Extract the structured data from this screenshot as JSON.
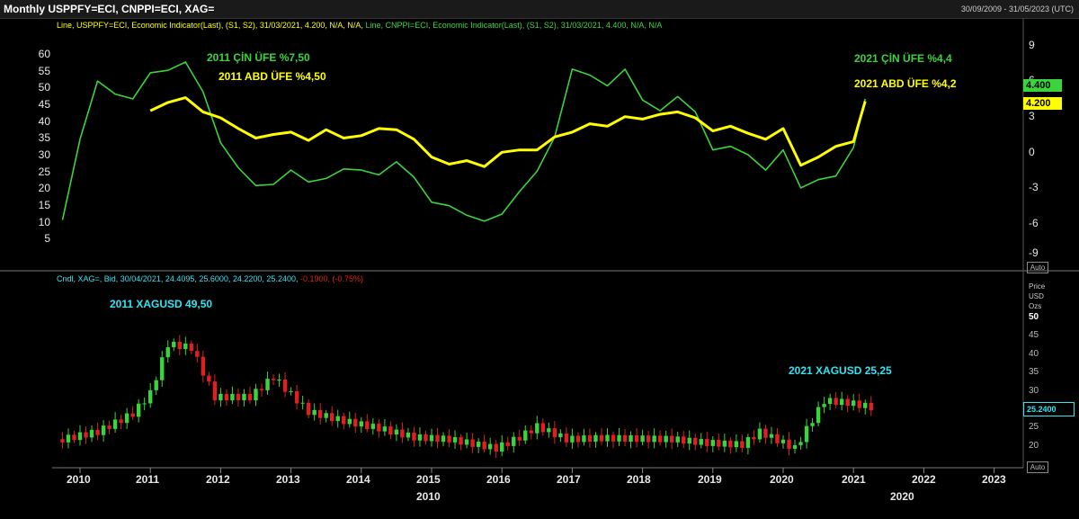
{
  "window": {
    "title": "Monthly USPPFY=ECI, CNPPI=ECI, XAG=",
    "date_range": "30/09/2009 - 31/05/2023 (UTC)"
  },
  "top_panel": {
    "legend": {
      "us_prefix": "Line, USPPFY=ECI, Economic Indicator(Last), (S1, S2), 31/03/2021, 4.200, N/A, N/A,",
      "cn_part": "Line, CNPPI=ECI, Economic Indicator(Last), (S1, S2), 31/03/2021, 4.400, N/A, N/A"
    },
    "annotations": {
      "cn_2011": "2011 ÇİN ÜFE %7,50",
      "us_2011": "2011 ABD ÜFE %4,50",
      "cn_2021": "2021 ÇİN ÜFE %4,4",
      "us_2021": "2021 ABD ÜFE %4,2"
    },
    "left_axis_ticks": [
      "60",
      "55",
      "50",
      "45",
      "40",
      "35",
      "30",
      "25",
      "20",
      "15",
      "10",
      "5"
    ],
    "right_axis_ticks": [
      "9",
      "6",
      "3",
      "0",
      "-3",
      "-6",
      "-9"
    ],
    "badges": {
      "cn": "4.400",
      "us": "4.200"
    },
    "auto_label": "Auto",
    "colors": {
      "cn": "#3cd43c",
      "us": "#ffff00"
    }
  },
  "bottom_panel": {
    "legend": {
      "main": "Cndl, XAG=, Bid, 30/04/2021, 24.4095, 25.6000, 24.2200, 25.2400,",
      "change": "-0.1900, (-0.75%)"
    },
    "annotations": {
      "xag_2011": "2011 XAGUSD 49,50",
      "xag_2021": "2021 XAGUSD 25,25"
    },
    "axis_header": {
      "line1": "Price",
      "line2": "USD",
      "line3": "Ozs"
    },
    "right_axis_ticks": [
      "50",
      "45",
      "40",
      "35",
      "30",
      "25",
      "20",
      "15"
    ],
    "last_price_badge": "25.2400",
    "auto_label": "Auto",
    "colors": {
      "up": "#3cd43c",
      "down": "#e02020",
      "accent": "#35e3f2"
    }
  },
  "x_axis": {
    "years": [
      "2010",
      "2011",
      "2012",
      "2013",
      "2014",
      "2015",
      "2016",
      "2017",
      "2018",
      "2019",
      "2020",
      "2021",
      "2022",
      "2023"
    ],
    "major": [
      "2010",
      "2020"
    ]
  },
  "chart_data": [
    {
      "type": "line",
      "title": "Monthly USPPFY=ECI, CNPPI=ECI",
      "x": [
        "2009-10",
        "2010-01",
        "2010-04",
        "2010-07",
        "2010-10",
        "2011-01",
        "2011-04",
        "2011-07",
        "2011-10",
        "2012-01",
        "2012-04",
        "2012-07",
        "2012-10",
        "2013-01",
        "2013-04",
        "2013-07",
        "2013-10",
        "2014-01",
        "2014-04",
        "2014-07",
        "2014-10",
        "2015-01",
        "2015-04",
        "2015-07",
        "2015-10",
        "2016-01",
        "2016-04",
        "2016-07",
        "2016-10",
        "2017-01",
        "2017-04",
        "2017-07",
        "2017-10",
        "2018-01",
        "2018-04",
        "2018-07",
        "2018-10",
        "2019-01",
        "2019-04",
        "2019-07",
        "2019-10",
        "2020-01",
        "2020-04",
        "2020-07",
        "2020-10",
        "2021-01",
        "2021-03"
      ],
      "series": [
        {
          "name": "CNPPI=ECI",
          "values": [
            -5.8,
            1.0,
            5.9,
            4.8,
            4.4,
            6.6,
            6.8,
            7.5,
            5.0,
            0.7,
            -1.4,
            -2.9,
            -2.8,
            -1.6,
            -2.6,
            -2.3,
            -1.5,
            -1.6,
            -2.0,
            -0.9,
            -2.2,
            -4.3,
            -4.6,
            -5.4,
            -5.9,
            -5.3,
            -3.4,
            -1.7,
            1.2,
            6.9,
            6.4,
            5.5,
            6.9,
            4.3,
            3.4,
            4.6,
            3.3,
            0.1,
            0.4,
            -0.3,
            -1.6,
            0.1,
            -3.1,
            -2.4,
            -2.1,
            0.3,
            4.4
          ]
        },
        {
          "name": "USPPFY=ECI",
          "values": [
            null,
            null,
            null,
            null,
            null,
            3.4,
            4.1,
            4.5,
            3.3,
            2.8,
            1.9,
            1.1,
            1.4,
            1.6,
            0.9,
            1.8,
            1.1,
            1.3,
            1.9,
            1.8,
            1.0,
            -0.5,
            -1.1,
            -0.8,
            -1.3,
            -0.1,
            0.1,
            0.1,
            1.2,
            1.6,
            2.3,
            2.1,
            2.9,
            2.7,
            3.1,
            3.3,
            2.8,
            1.7,
            2.1,
            1.5,
            1.0,
            1.9,
            -1.2,
            -0.5,
            0.4,
            0.8,
            4.2
          ]
        }
      ],
      "ylabel": "",
      "ylim": [
        -10,
        10
      ],
      "left_axis_range": [
        0,
        62
      ]
    },
    {
      "type": "bar",
      "title": "XAG= Monthly Candles",
      "x": [
        "2009-10",
        "2010-04",
        "2010-10",
        "2011-01",
        "2011-04",
        "2011-08",
        "2011-12",
        "2012-06",
        "2012-10",
        "2013-04",
        "2013-10",
        "2014-04",
        "2014-10",
        "2015-04",
        "2015-12",
        "2016-04",
        "2016-07",
        "2016-12",
        "2017-06",
        "2018-06",
        "2018-12",
        "2019-06",
        "2019-09",
        "2020-03",
        "2020-08",
        "2020-12",
        "2021-04"
      ],
      "values": [
        16.5,
        18.5,
        23.5,
        29.0,
        42.5,
        41.5,
        28.0,
        28.0,
        33.5,
        24.0,
        21.5,
        19.5,
        17.0,
        16.5,
        14.0,
        17.0,
        20.0,
        16.5,
        16.8,
        16.5,
        15.5,
        15.0,
        18.5,
        14.0,
        27.0,
        26.5,
        25.24
      ],
      "ylabel": "Price USD Ozs",
      "ylim": [
        10,
        52
      ]
    }
  ]
}
